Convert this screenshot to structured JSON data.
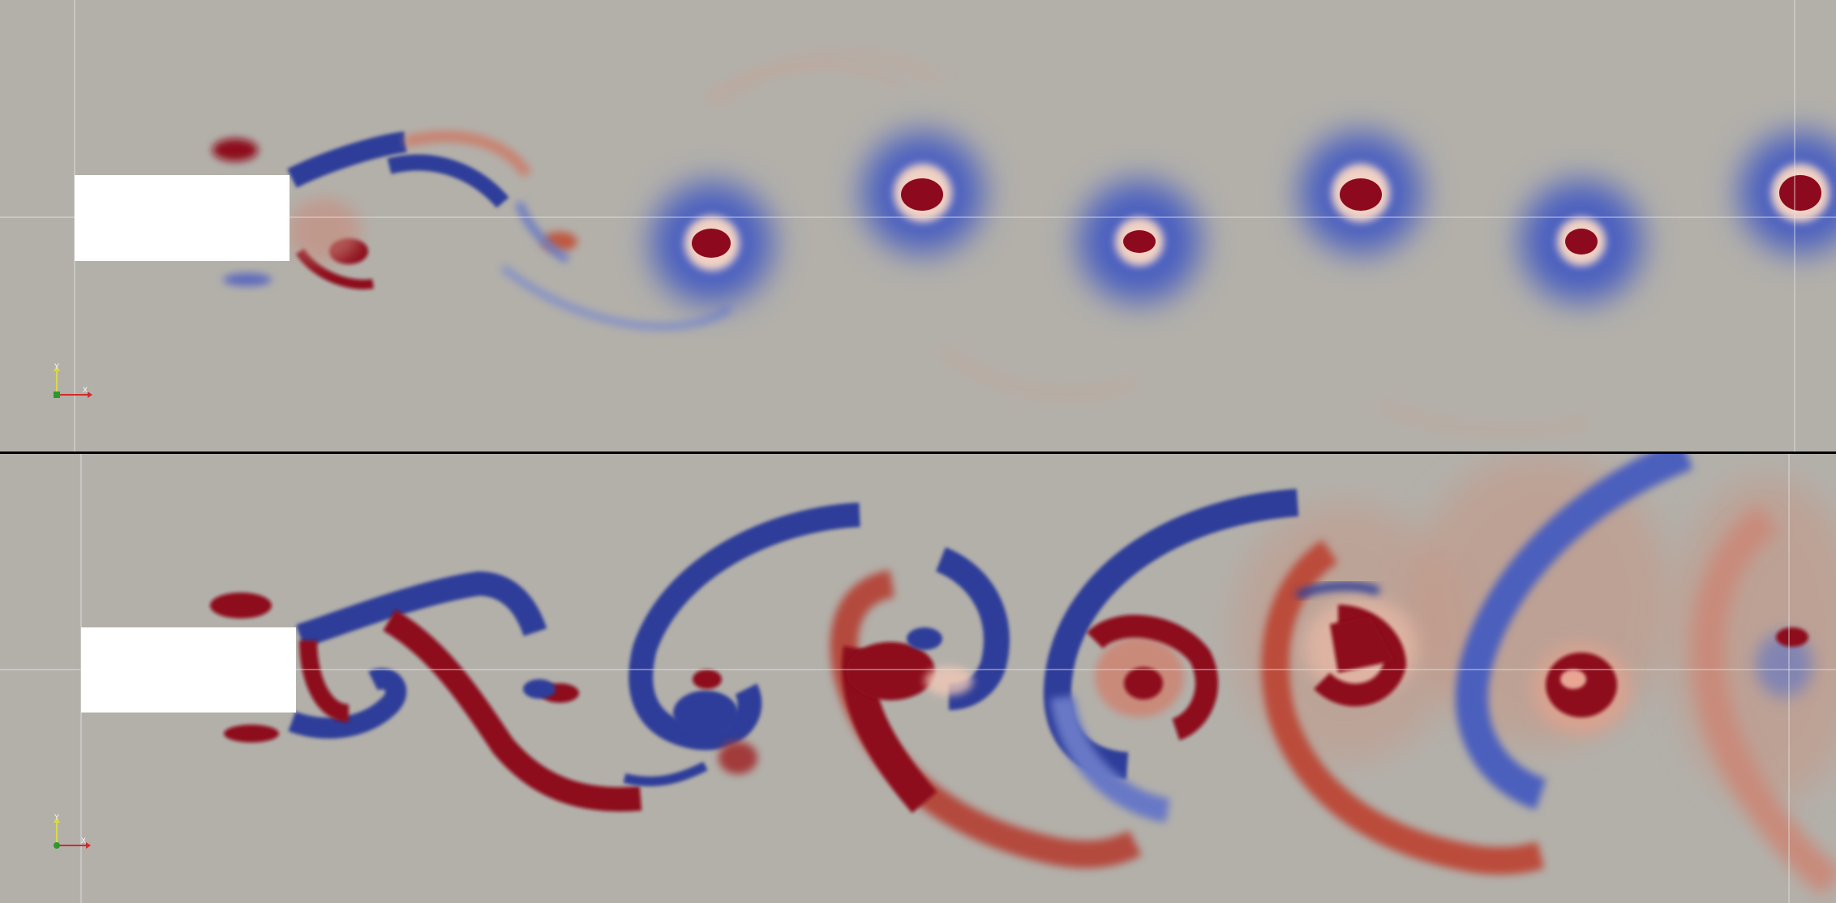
{
  "views": [
    {
      "id": "top",
      "axes": {
        "x_label": "X",
        "y_label": "Y",
        "z_label": "Z"
      }
    },
    {
      "id": "bottom",
      "axes": {
        "x_label": "X",
        "y_label": "Y",
        "z_label": "Z"
      }
    }
  ],
  "colors": {
    "background": "#b3b0aa",
    "positive": "#8d0a1e",
    "negative": "#2f3e99",
    "body": "#ffffff",
    "axis_x": "#d42a2a",
    "axis_y": "#d8d84a",
    "axis_z": "#2a9a2a",
    "divider": "#000000"
  }
}
